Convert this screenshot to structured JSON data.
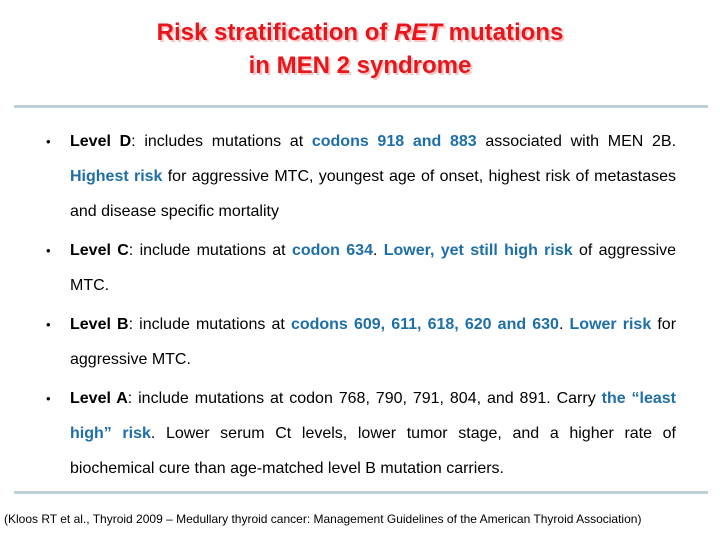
{
  "slide": {
    "title": {
      "line1_runs": [
        {
          "t": "Risk stratification of "
        },
        {
          "t": "RET",
          "s": "i"
        },
        {
          "t": " mutations"
        }
      ],
      "line2": "in MEN 2 syndrome"
    },
    "bullet_char": "•",
    "bullets": [
      {
        "level": "Level D",
        "runs": [
          {
            "t": "Level D",
            "s": "b"
          },
          {
            "t": ": includes mutations at "
          },
          {
            "t": "codons 918 and 883",
            "s": "c"
          },
          {
            "t": " associated with MEN 2B. "
          },
          {
            "t": "Highest risk",
            "s": "c"
          },
          {
            "t": " for aggressive MTC, youngest age of onset, highest risk of metastases and disease specific mortality"
          }
        ]
      },
      {
        "level": "Level C",
        "runs": [
          {
            "t": "Level C",
            "s": "b"
          },
          {
            "t": ": include mutations at "
          },
          {
            "t": "codon 634",
            "s": "c"
          },
          {
            "t": ". "
          },
          {
            "t": "Lower, yet still high risk",
            "s": "c"
          },
          {
            "t": " of aggressive MTC."
          }
        ]
      },
      {
        "level": "Level B",
        "runs": [
          {
            "t": "Level B",
            "s": "b"
          },
          {
            "t": ": include mutations at "
          },
          {
            "t": "codons 609, 611, 618, 620 and 630",
            "s": "c"
          },
          {
            "t": ". "
          },
          {
            "t": "Lower risk",
            "s": "c"
          },
          {
            "t": " for aggressive MTC."
          }
        ]
      },
      {
        "level": "Level A",
        "runs": [
          {
            "t": "Level A",
            "s": "b"
          },
          {
            "t": ": include mutations at codon 768, 790, 791, 804, and 891. Carry "
          },
          {
            "t": "the “least high” risk",
            "s": "c"
          },
          {
            "t": ". Lower serum Ct levels, lower tumor stage, and a higher rate of biochemical cure than age-matched level B mutation carriers."
          }
        ]
      }
    ],
    "citation": "(Kloos RT et al., Thyroid 2009 – Medullary thyroid cancer: Management Guidelines of the American Thyroid Association)",
    "colors": {
      "title_red": "#e8151b",
      "title_shadow": "#fbc4c4",
      "emphasis_blue": "#1e6fa8",
      "body_black": "#000000",
      "divider": "#bcd2d8",
      "background": "#ffffff"
    }
  }
}
